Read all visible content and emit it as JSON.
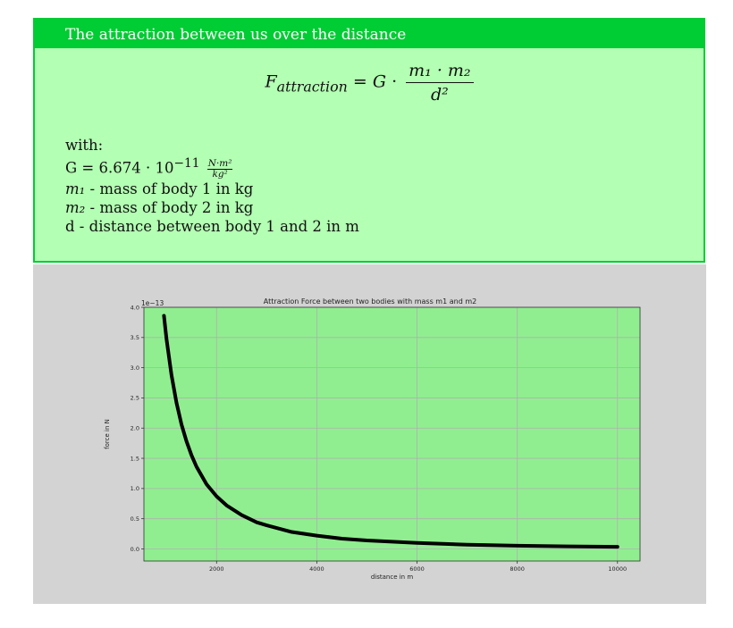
{
  "box": {
    "header": "The attraction between us over the distance",
    "formula": {
      "lhs_symbol": "F",
      "lhs_subscript": "attraction",
      "equals": "=",
      "const": "G",
      "dot": "·",
      "numerator": "m₁ · m₂",
      "denominator": "d²"
    },
    "with_label": "with:",
    "g_line": {
      "prefix": "G = 6.674 · 10",
      "exponent": "−11",
      "unit_num": "N·m²",
      "unit_den": "kg²"
    },
    "lines": [
      {
        "symbol": "m₁",
        "text": " - mass of body 1 in kg"
      },
      {
        "symbol": "m₂",
        "text": " - mass of body 2 in kg"
      },
      {
        "symbol": "",
        "text": "d - distance between body 1 and 2 in m"
      }
    ]
  },
  "colors": {
    "box_background": "#b3ffb3",
    "box_border": "#00cc33",
    "plot_figure": "#d3d3d3",
    "plot_axes": "#90ee90",
    "line": "#000000"
  },
  "chart_data": {
    "type": "line",
    "title": "Attraction Force between two bodies with mass m1 and m2",
    "xlabel": "distance in m",
    "ylabel": "force in N",
    "y_offset_label": "1e−13",
    "xlim": [
      550,
      10450
    ],
    "ylim": [
      -0.2,
      4.0
    ],
    "xticks": [
      2000,
      4000,
      6000,
      8000,
      10000
    ],
    "yticks": [
      0.0,
      0.5,
      1.0,
      1.5,
      2.0,
      2.5,
      3.0,
      3.5,
      4.0
    ],
    "ytick_labels": [
      "0.0",
      "0.5",
      "1.0",
      "1.5",
      "2.0",
      "2.5",
      "3.0",
      "3.5",
      "4.0"
    ],
    "grid": true,
    "series": [
      {
        "x": [
          950,
          1000,
          1100,
          1200,
          1300,
          1400,
          1500,
          1600,
          1800,
          2000,
          2200,
          2500,
          2800,
          3000,
          3500,
          4000,
          4500,
          5000,
          6000,
          7000,
          8000,
          9000,
          10000
        ],
        "values": [
          3.86,
          3.48,
          2.88,
          2.42,
          2.06,
          1.78,
          1.55,
          1.36,
          1.07,
          0.87,
          0.72,
          0.56,
          0.44,
          0.39,
          0.28,
          0.22,
          0.17,
          0.14,
          0.1,
          0.07,
          0.054,
          0.043,
          0.035
        ]
      }
    ]
  }
}
